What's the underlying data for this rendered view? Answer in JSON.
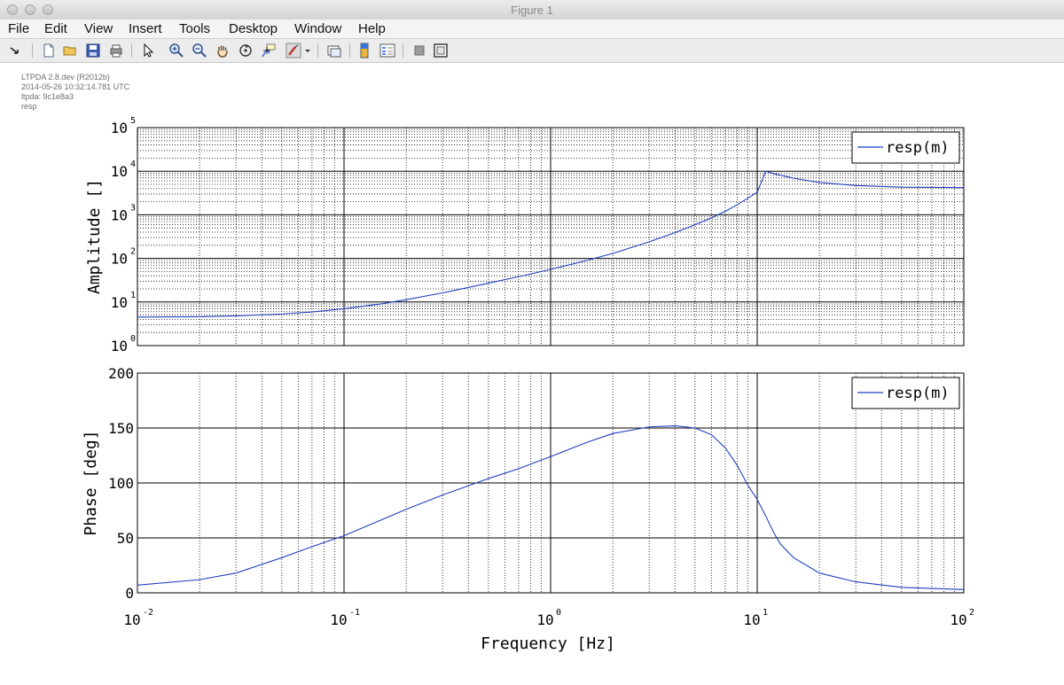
{
  "window": {
    "title": "Figure 1"
  },
  "menu": [
    "File",
    "Edit",
    "View",
    "Insert",
    "Tools",
    "Desktop",
    "Window",
    "Help"
  ],
  "toolbar": [
    "arrow-dropdown-icon",
    "new-figure-icon",
    "open-icon",
    "save-icon",
    "print-icon",
    "select-pointer-icon",
    "zoom-in-icon",
    "zoom-out-icon",
    "pan-hand-icon",
    "rotate-3d-icon",
    "data-cursor-icon",
    "brush-icon",
    "brush-menu-icon",
    "link-plot-icon",
    "colorbar-icon",
    "legend-icon",
    "hide-plot-tools-icon",
    "show-plot-tools-icon"
  ],
  "annotation": [
    "LTPDA 2.8.dev (R2012b)",
    "2014-05-26 10:32:14.781 UTC",
    "ltpda: 9c1e8a3",
    "resp"
  ],
  "colors": {
    "line": "#1f3fbf",
    "background": "#ffffff",
    "axis": "#000000"
  },
  "chart_data": [
    {
      "type": "line",
      "xscale": "log",
      "yscale": "log",
      "xlim": [
        0.01,
        100
      ],
      "ylim": [
        1,
        100000
      ],
      "grid": true,
      "ylabel": "Amplitude  []",
      "ytick_base": "10",
      "ytick_exponents": [
        "0",
        "1",
        "2",
        "3",
        "4",
        "5"
      ],
      "legend": {
        "placement": "top-right",
        "entries": [
          "resp(m)"
        ]
      },
      "series": [
        {
          "name": "resp(m)",
          "x": [
            0.01,
            0.02,
            0.03,
            0.05,
            0.07,
            0.1,
            0.15,
            0.2,
            0.3,
            0.5,
            0.7,
            1,
            1.5,
            2,
            3,
            4,
            5,
            6,
            7,
            8,
            9,
            10,
            11,
            12,
            15,
            20,
            30,
            50,
            100
          ],
          "y": [
            4.5,
            4.6,
            4.8,
            5.3,
            5.9,
            7.0,
            9.0,
            11.3,
            16.2,
            27,
            38,
            56,
            90,
            130,
            240,
            390,
            590,
            850,
            1200,
            1700,
            2400,
            3300,
            10000,
            8800,
            6900,
            5500,
            4700,
            4300,
            4200
          ]
        }
      ]
    },
    {
      "type": "line",
      "xscale": "log",
      "xlim": [
        0.01,
        100
      ],
      "ylim": [
        0,
        200
      ],
      "grid": true,
      "ylabel": "Phase  [deg]",
      "xlabel": "Frequency  [Hz]",
      "yticks": [
        "0",
        "50",
        "100",
        "150",
        "200"
      ],
      "xtick_base": "10",
      "xtick_exponents": [
        "-2",
        "-1",
        "0",
        "1",
        "2"
      ],
      "legend": {
        "placement": "top-right",
        "entries": [
          "resp(m)"
        ]
      },
      "series": [
        {
          "name": "resp(m)",
          "x": [
            0.01,
            0.02,
            0.03,
            0.05,
            0.07,
            0.1,
            0.15,
            0.2,
            0.3,
            0.5,
            0.7,
            1,
            1.5,
            2,
            3,
            4,
            5,
            6,
            7,
            8,
            9,
            10,
            11,
            12,
            13,
            15,
            20,
            30,
            50,
            100
          ],
          "y": [
            7,
            12,
            18,
            32,
            42,
            52,
            66,
            76,
            89,
            104,
            113,
            124,
            137,
            145,
            151,
            152,
            150,
            144,
            132,
            116,
            98,
            85,
            70,
            55,
            44,
            32,
            18,
            10,
            5,
            3
          ]
        }
      ]
    }
  ]
}
